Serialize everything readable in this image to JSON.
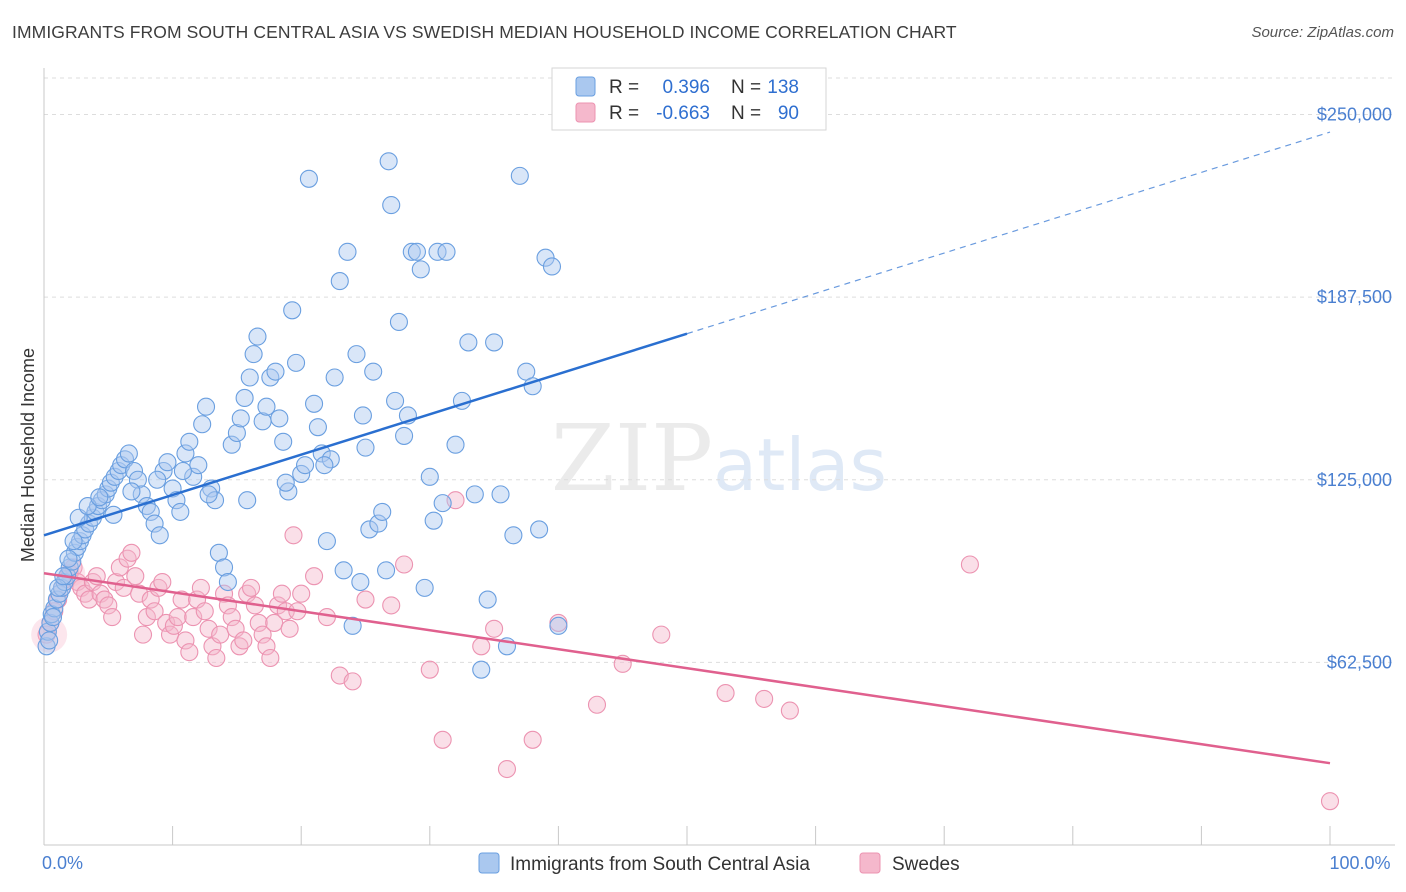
{
  "title": "IMMIGRANTS FROM SOUTH CENTRAL ASIA VS SWEDISH MEDIAN HOUSEHOLD INCOME CORRELATION CHART",
  "source": "Source: ZipAtlas.com",
  "watermark": {
    "zip": "ZIP",
    "atlas": "atlas"
  },
  "colors": {
    "blue_fill": "#aac8ef",
    "blue_stroke": "#6a9fe0",
    "blue_line": "#2a6fd0",
    "pink_fill": "#f5b8cc",
    "pink_stroke": "#ec93b1",
    "pink_line": "#e0608e",
    "tick_label": "#4a7fd0",
    "grid": "#dddddd"
  },
  "legend": {
    "rows": [
      {
        "r_label": "R =",
        "r_value": "0.396",
        "n_label": "N =",
        "n_value": "138",
        "color": "blue"
      },
      {
        "r_label": "R =",
        "r_value": "-0.663",
        "n_label": "N =",
        "n_value": "90",
        "color": "pink"
      }
    ]
  },
  "chart_data": {
    "type": "scatter",
    "title": "IMMIGRANTS FROM SOUTH CENTRAL ASIA VS SWEDISH MEDIAN HOUSEHOLD INCOME CORRELATION CHART",
    "xlabel": "",
    "ylabel": "Median Household Income",
    "xlim": [
      0,
      100
    ],
    "ylim": [
      0,
      262500
    ],
    "x_tick_labels": [
      {
        "value": 0,
        "label": "0.0%"
      },
      {
        "value": 100,
        "label": "100.0%"
      }
    ],
    "y_ticks": [
      {
        "value": 62500,
        "label": "$62,500"
      },
      {
        "value": 125000,
        "label": "$125,000"
      },
      {
        "value": 187500,
        "label": "$187,500"
      },
      {
        "value": 250000,
        "label": "$250,000"
      }
    ],
    "grid": "horizontal dashed",
    "legend_placement": "bottom",
    "series": [
      {
        "name": "Immigrants from South Central Asia",
        "color": "blue",
        "trend": {
          "x": [
            0,
            50
          ],
          "y": [
            106000,
            175000
          ],
          "dashed_extension": {
            "x": [
              50,
              100
            ],
            "y": [
              175000,
              244000
            ]
          }
        },
        "points": [
          [
            0.2,
            68000
          ],
          [
            0.3,
            73000
          ],
          [
            0.5,
            76000
          ],
          [
            0.6,
            79000
          ],
          [
            0.8,
            81000
          ],
          [
            1.0,
            84000
          ],
          [
            1.2,
            86000
          ],
          [
            1.4,
            88000
          ],
          [
            1.6,
            90000
          ],
          [
            1.8,
            92000
          ],
          [
            2.0,
            95000
          ],
          [
            2.2,
            97000
          ],
          [
            2.4,
            100000
          ],
          [
            2.6,
            102000
          ],
          [
            2.8,
            104000
          ],
          [
            3.0,
            106000
          ],
          [
            3.2,
            108000
          ],
          [
            3.5,
            110000
          ],
          [
            3.8,
            112000
          ],
          [
            4.0,
            114000
          ],
          [
            4.2,
            116000
          ],
          [
            4.5,
            118000
          ],
          [
            4.8,
            120000
          ],
          [
            5.0,
            122000
          ],
          [
            5.2,
            124000
          ],
          [
            5.5,
            126000
          ],
          [
            5.8,
            128000
          ],
          [
            6.0,
            130000
          ],
          [
            6.3,
            132000
          ],
          [
            6.6,
            134000
          ],
          [
            7.0,
            128000
          ],
          [
            7.3,
            125000
          ],
          [
            7.6,
            120000
          ],
          [
            8.0,
            116000
          ],
          [
            8.3,
            114000
          ],
          [
            8.6,
            110000
          ],
          [
            9.0,
            106000
          ],
          [
            9.3,
            128000
          ],
          [
            9.6,
            131000
          ],
          [
            10.0,
            122000
          ],
          [
            10.3,
            118000
          ],
          [
            10.6,
            114000
          ],
          [
            11.0,
            134000
          ],
          [
            11.3,
            138000
          ],
          [
            11.6,
            126000
          ],
          [
            12.0,
            130000
          ],
          [
            12.3,
            144000
          ],
          [
            12.6,
            150000
          ],
          [
            13.0,
            122000
          ],
          [
            13.3,
            118000
          ],
          [
            13.6,
            100000
          ],
          [
            14.0,
            95000
          ],
          [
            14.3,
            90000
          ],
          [
            14.6,
            137000
          ],
          [
            15.0,
            141000
          ],
          [
            15.3,
            146000
          ],
          [
            15.6,
            153000
          ],
          [
            16.0,
            160000
          ],
          [
            16.3,
            168000
          ],
          [
            16.6,
            174000
          ],
          [
            17.0,
            145000
          ],
          [
            17.3,
            150000
          ],
          [
            17.6,
            160000
          ],
          [
            18.0,
            162000
          ],
          [
            18.3,
            146000
          ],
          [
            18.6,
            138000
          ],
          [
            19.0,
            121000
          ],
          [
            19.3,
            183000
          ],
          [
            19.6,
            165000
          ],
          [
            20.0,
            127000
          ],
          [
            20.3,
            130000
          ],
          [
            20.6,
            228000
          ],
          [
            21.0,
            151000
          ],
          [
            21.3,
            143000
          ],
          [
            21.6,
            134000
          ],
          [
            22.0,
            104000
          ],
          [
            22.3,
            132000
          ],
          [
            22.6,
            160000
          ],
          [
            23.0,
            193000
          ],
          [
            23.3,
            94000
          ],
          [
            23.6,
            203000
          ],
          [
            24.0,
            75000
          ],
          [
            24.3,
            168000
          ],
          [
            24.6,
            90000
          ],
          [
            25.0,
            136000
          ],
          [
            25.3,
            108000
          ],
          [
            25.6,
            162000
          ],
          [
            26.0,
            110000
          ],
          [
            26.3,
            114000
          ],
          [
            26.6,
            94000
          ],
          [
            27.0,
            219000
          ],
          [
            27.3,
            152000
          ],
          [
            27.6,
            179000
          ],
          [
            28.0,
            140000
          ],
          [
            28.3,
            147000
          ],
          [
            28.6,
            203000
          ],
          [
            29.0,
            203000
          ],
          [
            29.3,
            197000
          ],
          [
            29.6,
            88000
          ],
          [
            30.0,
            126000
          ],
          [
            30.3,
            111000
          ],
          [
            30.6,
            203000
          ],
          [
            31.0,
            117000
          ],
          [
            31.3,
            203000
          ],
          [
            32.0,
            137000
          ],
          [
            32.5,
            152000
          ],
          [
            33.0,
            172000
          ],
          [
            33.5,
            120000
          ],
          [
            34.0,
            60000
          ],
          [
            34.5,
            84000
          ],
          [
            35.0,
            172000
          ],
          [
            35.5,
            120000
          ],
          [
            36.0,
            68000
          ],
          [
            36.5,
            106000
          ],
          [
            37.0,
            229000
          ],
          [
            37.5,
            162000
          ],
          [
            38.0,
            157000
          ],
          [
            38.5,
            108000
          ],
          [
            39.0,
            201000
          ],
          [
            39.5,
            198000
          ],
          [
            40.0,
            75000
          ],
          [
            0.4,
            70000
          ],
          [
            0.7,
            78000
          ],
          [
            1.1,
            88000
          ],
          [
            1.5,
            92000
          ],
          [
            1.9,
            98000
          ],
          [
            2.3,
            104000
          ],
          [
            2.7,
            112000
          ],
          [
            3.4,
            116000
          ],
          [
            4.3,
            119000
          ],
          [
            5.4,
            113000
          ],
          [
            6.8,
            121000
          ],
          [
            8.8,
            125000
          ],
          [
            10.8,
            128000
          ],
          [
            12.8,
            120000
          ],
          [
            15.8,
            118000
          ],
          [
            18.8,
            124000
          ],
          [
            21.8,
            130000
          ],
          [
            24.8,
            147000
          ],
          [
            26.8,
            234000
          ]
        ]
      },
      {
        "name": "Swedes",
        "color": "pink",
        "trend": {
          "x": [
            0,
            100
          ],
          "y": [
            93000,
            28000
          ]
        },
        "points": [
          [
            0.2,
            72000
          ],
          [
            0.5,
            76000
          ],
          [
            0.8,
            80000
          ],
          [
            1.1,
            84000
          ],
          [
            1.4,
            88000
          ],
          [
            1.7,
            91000
          ],
          [
            2.0,
            93000
          ],
          [
            2.3,
            95000
          ],
          [
            2.6,
            90000
          ],
          [
            2.9,
            88000
          ],
          [
            3.2,
            86000
          ],
          [
            3.5,
            84000
          ],
          [
            3.8,
            90000
          ],
          [
            4.1,
            92000
          ],
          [
            4.4,
            86000
          ],
          [
            4.7,
            84000
          ],
          [
            5.0,
            82000
          ],
          [
            5.3,
            78000
          ],
          [
            5.6,
            90000
          ],
          [
            5.9,
            95000
          ],
          [
            6.2,
            88000
          ],
          [
            6.5,
            98000
          ],
          [
            6.8,
            100000
          ],
          [
            7.1,
            92000
          ],
          [
            7.4,
            86000
          ],
          [
            7.7,
            72000
          ],
          [
            8.0,
            78000
          ],
          [
            8.3,
            84000
          ],
          [
            8.6,
            80000
          ],
          [
            8.9,
            88000
          ],
          [
            9.2,
            90000
          ],
          [
            9.5,
            76000
          ],
          [
            9.8,
            72000
          ],
          [
            10.1,
            75000
          ],
          [
            10.4,
            78000
          ],
          [
            10.7,
            84000
          ],
          [
            11.0,
            70000
          ],
          [
            11.3,
            66000
          ],
          [
            11.6,
            78000
          ],
          [
            11.9,
            84000
          ],
          [
            12.2,
            88000
          ],
          [
            12.5,
            80000
          ],
          [
            12.8,
            74000
          ],
          [
            13.1,
            68000
          ],
          [
            13.4,
            64000
          ],
          [
            13.7,
            72000
          ],
          [
            14.0,
            86000
          ],
          [
            14.3,
            82000
          ],
          [
            14.6,
            78000
          ],
          [
            14.9,
            74000
          ],
          [
            15.2,
            68000
          ],
          [
            15.5,
            70000
          ],
          [
            15.8,
            86000
          ],
          [
            16.1,
            88000
          ],
          [
            16.4,
            82000
          ],
          [
            16.7,
            76000
          ],
          [
            17.0,
            72000
          ],
          [
            17.3,
            68000
          ],
          [
            17.6,
            64000
          ],
          [
            17.9,
            76000
          ],
          [
            18.2,
            82000
          ],
          [
            18.5,
            86000
          ],
          [
            18.8,
            80000
          ],
          [
            19.1,
            74000
          ],
          [
            19.4,
            106000
          ],
          [
            19.7,
            80000
          ],
          [
            20.0,
            86000
          ],
          [
            21.0,
            92000
          ],
          [
            22.0,
            78000
          ],
          [
            23.0,
            58000
          ],
          [
            24.0,
            56000
          ],
          [
            25.0,
            84000
          ],
          [
            27.0,
            82000
          ],
          [
            28.0,
            96000
          ],
          [
            30.0,
            60000
          ],
          [
            31.0,
            36000
          ],
          [
            32.0,
            118000
          ],
          [
            34.0,
            68000
          ],
          [
            35.0,
            74000
          ],
          [
            36.0,
            26000
          ],
          [
            38.0,
            36000
          ],
          [
            40.0,
            76000
          ],
          [
            43.0,
            48000
          ],
          [
            45.0,
            62000
          ],
          [
            48.0,
            72000
          ],
          [
            53.0,
            52000
          ],
          [
            56.0,
            50000
          ],
          [
            58.0,
            46000
          ],
          [
            72.0,
            96000
          ],
          [
            100.0,
            15000
          ]
        ]
      }
    ]
  }
}
